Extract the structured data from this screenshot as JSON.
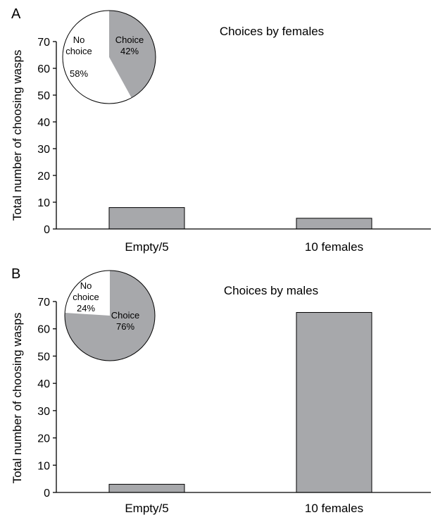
{
  "colors": {
    "bar": "#a7a8ab",
    "pie_choice": "#a7a8ab",
    "pie_no_choice": "#ffffff",
    "stroke": "#000000"
  },
  "chart_data": [
    {
      "panel": "A",
      "type": "bar",
      "title": "Choices by females",
      "ylabel": "Total number of choosing wasps",
      "xlabel": "",
      "categories": [
        "Empty/5",
        "10 females"
      ],
      "values": [
        8,
        4
      ],
      "ylim": [
        0,
        70
      ],
      "yticks": [
        0,
        10,
        20,
        30,
        40,
        50,
        60,
        70
      ],
      "grid": false,
      "inset_pie": {
        "type": "pie",
        "slices": [
          {
            "label": "Choice",
            "value": 42,
            "value_text": "42%"
          },
          {
            "label": "No choice",
            "value": 58,
            "value_text": "58%"
          }
        ]
      }
    },
    {
      "panel": "B",
      "type": "bar",
      "title": "Choices by males",
      "ylabel": "Total number of choosing wasps",
      "xlabel": "",
      "categories": [
        "Empty/5",
        "10 females"
      ],
      "values": [
        3,
        66
      ],
      "ylim": [
        0,
        70
      ],
      "yticks": [
        0,
        10,
        20,
        30,
        40,
        50,
        60,
        70
      ],
      "grid": false,
      "inset_pie": {
        "type": "pie",
        "slices": [
          {
            "label": "Choice",
            "value": 76,
            "value_text": "76%"
          },
          {
            "label": "No choice",
            "value": 24,
            "value_text": "24%"
          }
        ]
      }
    }
  ]
}
